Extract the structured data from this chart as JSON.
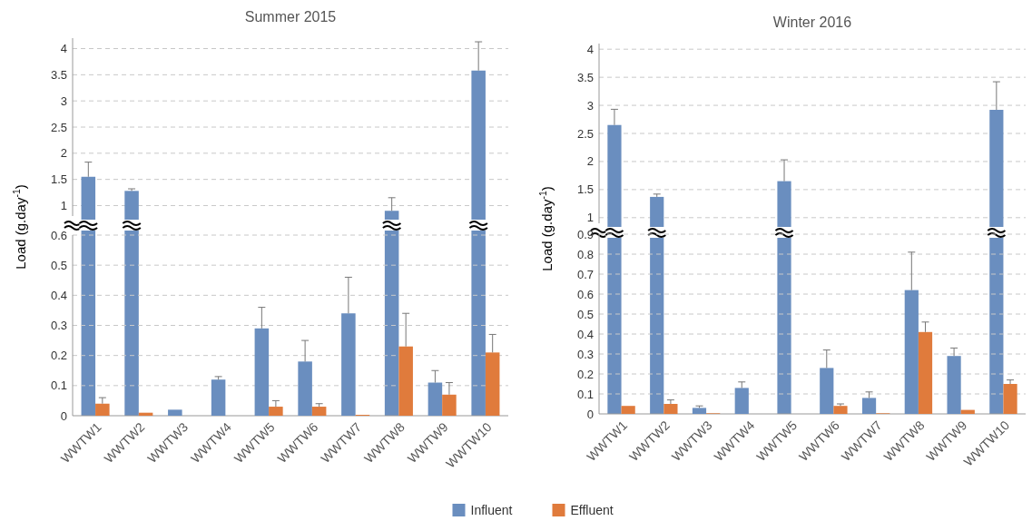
{
  "chart_data": [
    {
      "type": "bar",
      "title": "Summer 2015",
      "ylabel": "Load (g.day$^{-1}$)",
      "categories": [
        null,
        null,
        null,
        null,
        null,
        null,
        null,
        null,
        null,
        null
      ],
      "series": [
        {
          "color": "#6a8ebf",
          "values": [
            1.55,
            1.28,
            null,
            null,
            null,
            null,
            null,
            0.9,
            null,
            3.58
          ],
          "errors": [
            [
              1.55,
              1.83
            ],
            [
              1.28,
              1.32
            ],
            null,
            null,
            null,
            null,
            null,
            [
              0.9,
              1.15
            ],
            null,
            [
              3.58,
              4.13
            ]
          ]
        }
      ],
      "ylim": [
        0.8,
        4.2
      ],
      "yticks": [
        1,
        1.5,
        2,
        2.5,
        3,
        3.5,
        4
      ],
      "grid": "y",
      "tick_labels": "y"
    },
    {
      "type": "bar",
      "categories": [
        "WWTW1",
        "WWTW2",
        "WWTW3",
        "WWTW4",
        "WWTW5",
        "WWTW6",
        "WWTW7",
        "WWTW8",
        "WWTW9",
        "WWTW10"
      ],
      "series": [
        {
          "name": "Influent",
          "color": "#6a8ebf",
          "values": [
            null,
            null,
            0.02,
            0.12,
            0.29,
            0.18,
            0.34,
            null,
            0.11,
            null
          ],
          "errors": [
            null,
            null,
            null,
            [
              0.12,
              0.13
            ],
            [
              0.29,
              0.36
            ],
            [
              0.18,
              0.25
            ],
            [
              0.34,
              0.46
            ],
            null,
            [
              0.11,
              0.15
            ],
            null
          ]
        },
        {
          "name": "Effluent",
          "color": "#e07b3c",
          "values": [
            0.04,
            0.01,
            0,
            0,
            0.03,
            0.03,
            0.003,
            0.23,
            0.07,
            0.21
          ],
          "errors": [
            [
              0.04,
              0.06
            ],
            null,
            null,
            null,
            [
              0.03,
              0.05
            ],
            [
              0.03,
              0.04
            ],
            null,
            [
              0.23,
              0.34
            ],
            [
              0.07,
              0.11
            ],
            [
              0.21,
              0.27
            ]
          ]
        }
      ],
      "ylim": [
        0,
        0.6
      ],
      "yticks": [
        0,
        0.1,
        0.2,
        0.3,
        0.4,
        0.5,
        0.6
      ],
      "grid": "y",
      "legend": "bottom"
    },
    {
      "type": "bar",
      "title": "Winter 2016",
      "ylabel": "Load (g.day$^{-1}$)",
      "categories": [
        null,
        null,
        null,
        null,
        null,
        null,
        null,
        null,
        null,
        null
      ],
      "series": [
        {
          "color": "#6a8ebf",
          "values": [
            2.65,
            1.37,
            null,
            null,
            1.65,
            null,
            null,
            null,
            null,
            2.92
          ],
          "errors": [
            [
              2.65,
              2.93
            ],
            [
              1.37,
              1.42
            ],
            null,
            null,
            [
              1.65,
              2.03
            ],
            null,
            null,
            null,
            null,
            [
              2.92,
              3.42
            ]
          ]
        }
      ],
      "ylim": [
        0.9,
        4.1
      ],
      "yticks": [
        1,
        1.5,
        2,
        2.5,
        3,
        3.5,
        4
      ],
      "grid": "y",
      "tick_labels": "y"
    },
    {
      "type": "bar",
      "categories": [
        "WWTW1",
        "WWTW2",
        "WWTW3",
        "WWTW4",
        "WWTW5",
        "WWTW6",
        "WWTW7",
        "WWTW8",
        "WWTW9",
        "WWTW10"
      ],
      "series": [
        {
          "color": "#6a8ebf",
          "values": [
            null,
            null,
            0.03,
            0.13,
            null,
            0.23,
            0.08,
            0.62,
            0.29,
            null
          ],
          "errors": [
            null,
            null,
            [
              0.03,
              0.04
            ],
            [
              0.13,
              0.16
            ],
            null,
            [
              0.23,
              0.32
            ],
            [
              0.08,
              0.11
            ],
            [
              0.62,
              0.81
            ],
            [
              0.29,
              0.33
            ],
            null
          ]
        },
        {
          "color": "#e07b3c",
          "values": [
            0.04,
            0.05,
            0.003,
            0,
            0,
            0.04,
            0.003,
            0.41,
            0.02,
            0.15
          ],
          "errors": [
            null,
            [
              0.05,
              0.07
            ],
            null,
            null,
            null,
            [
              0.04,
              0.05
            ],
            null,
            [
              0.41,
              0.46
            ],
            null,
            [
              0.15,
              0.17
            ]
          ]
        }
      ],
      "ylim": [
        0,
        0.9
      ],
      "yticks": [
        0,
        0.1,
        0.2,
        0.3,
        0.4,
        0.5,
        0.6,
        0.7,
        0.8,
        0.9
      ],
      "grid": "y"
    }
  ]
}
